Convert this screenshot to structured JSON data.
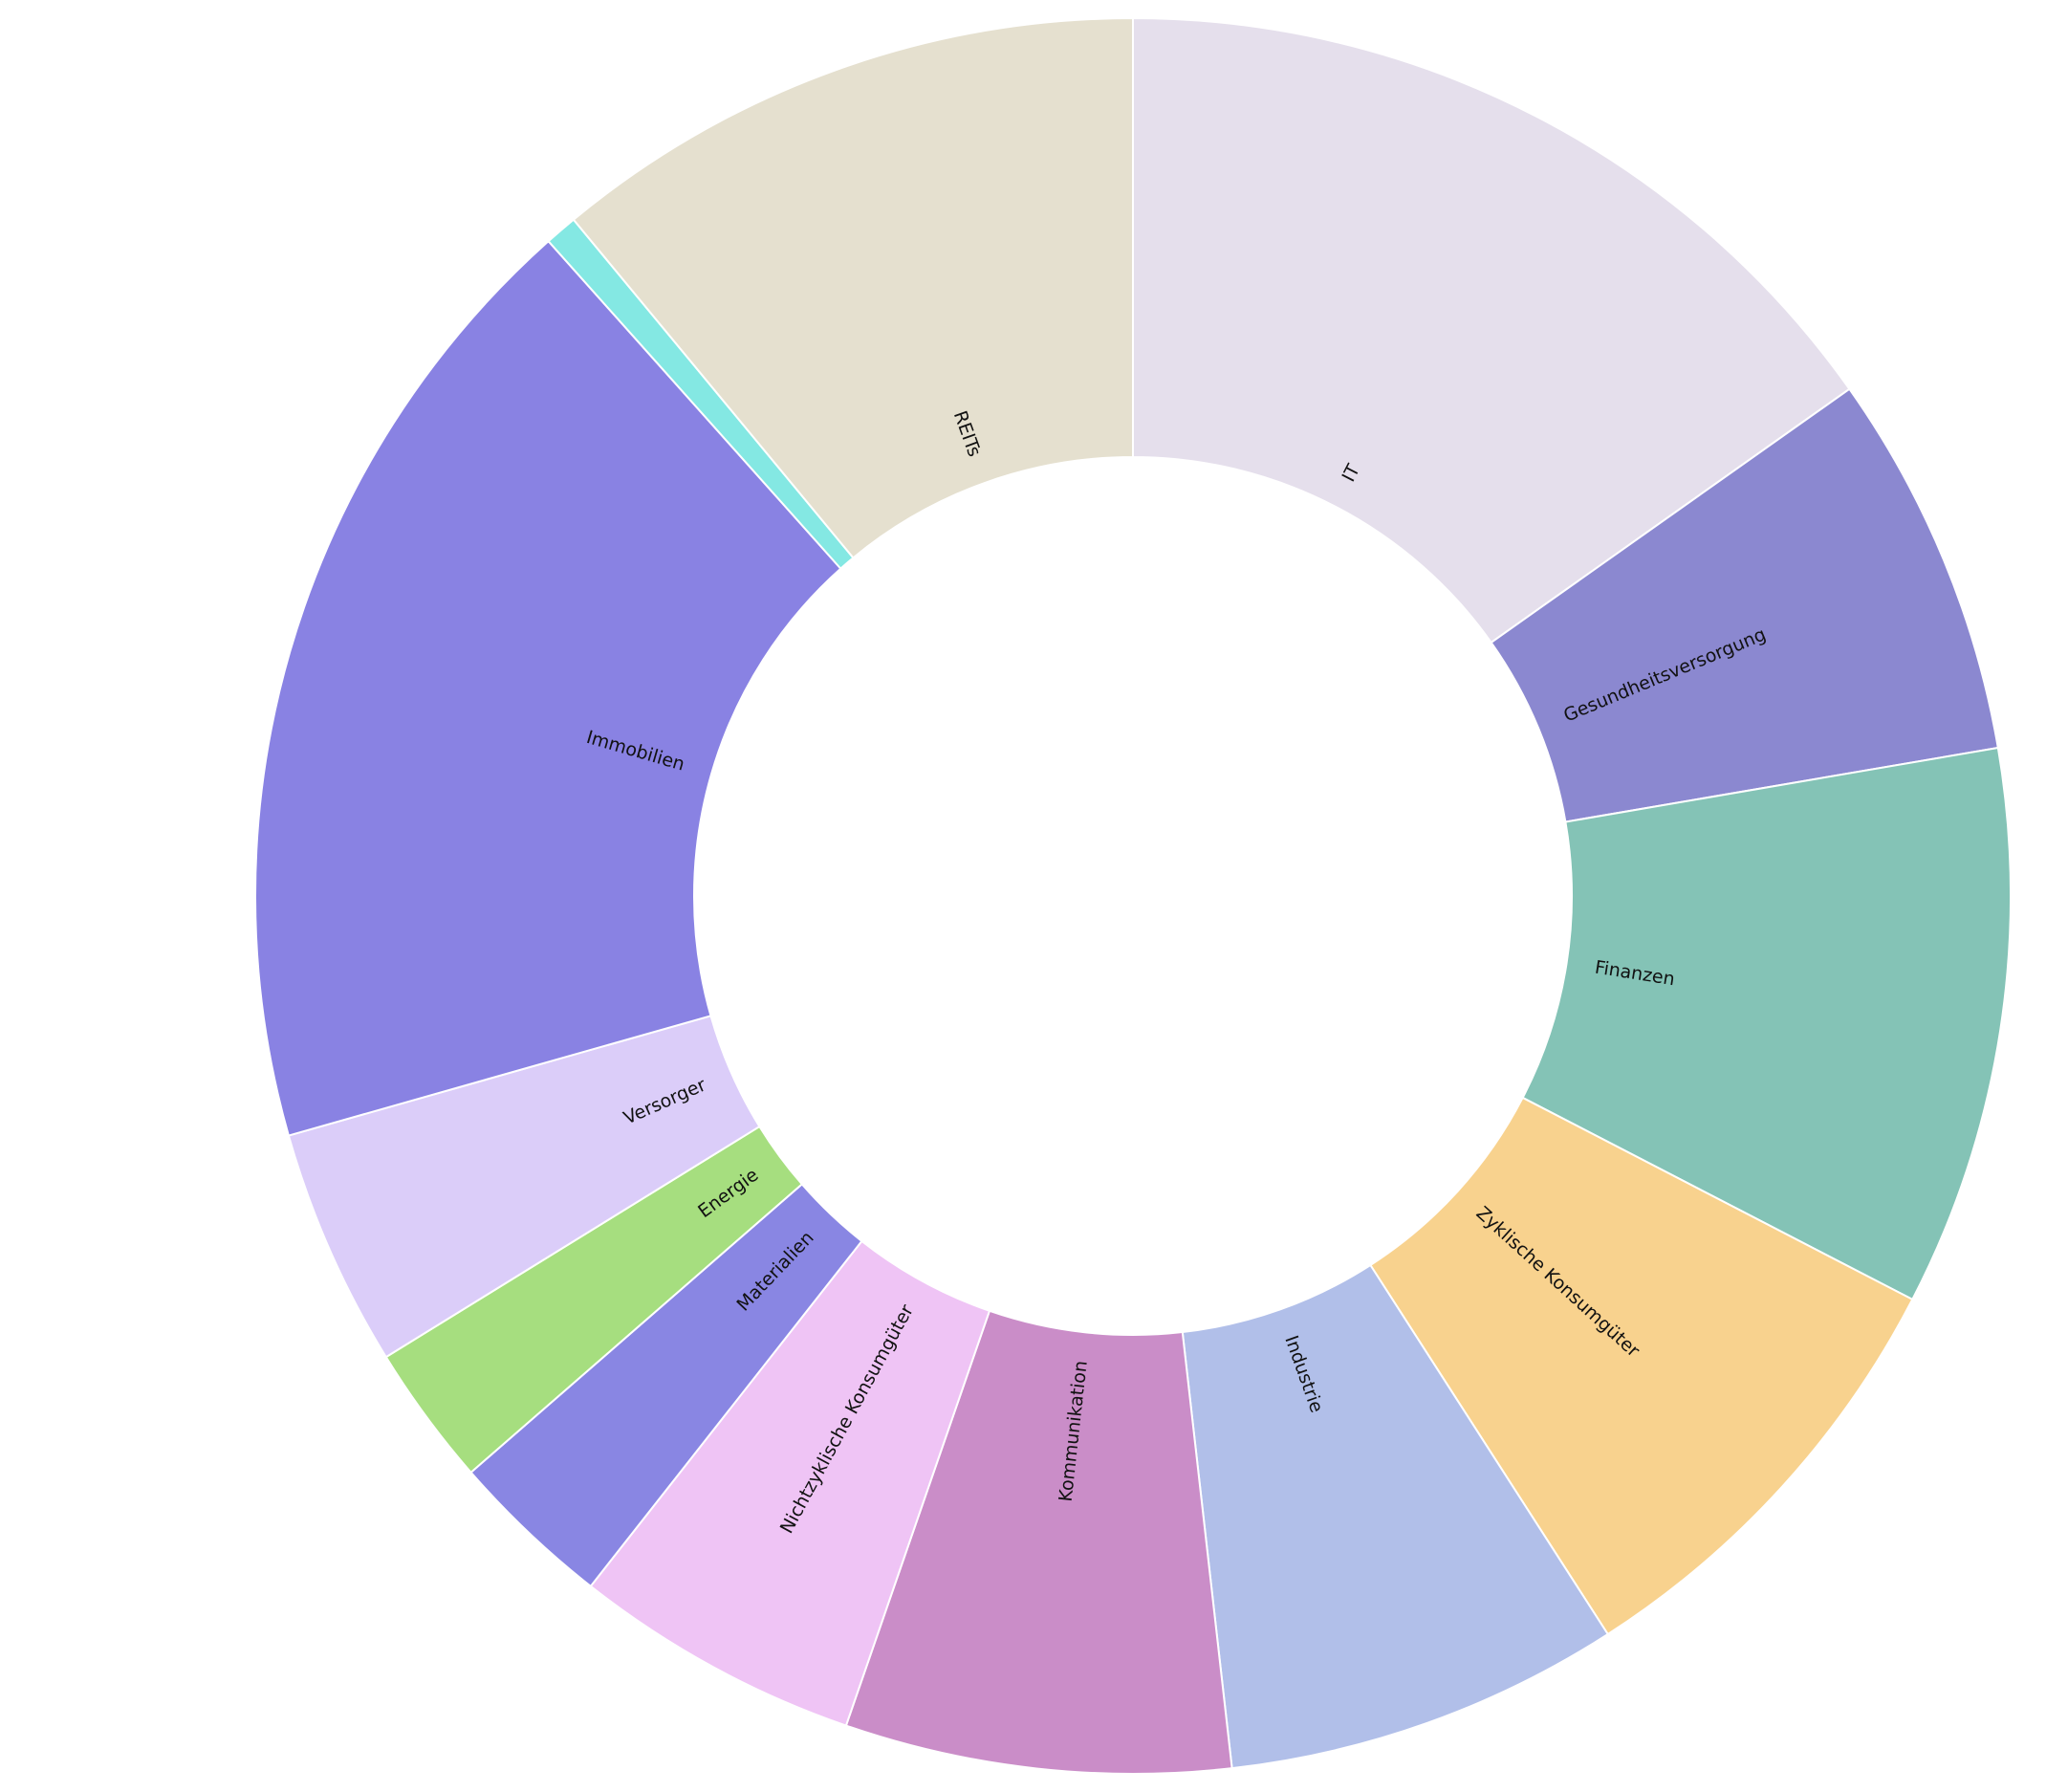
{
  "chart_data": {
    "type": "pie",
    "variant": "donut",
    "title": "",
    "slices": [
      {
        "label": "IT",
        "value": 15.2,
        "color": "#e5dfec"
      },
      {
        "label": "Gesundheitsversorgung",
        "value": 7.1,
        "color": "#8b88d0"
      },
      {
        "label": "Finanzen",
        "value": 10.3,
        "color": "#84c3b6"
      },
      {
        "label": "Zyklische Konsumgüter",
        "value": 8.3,
        "color": "#f8d28e"
      },
      {
        "label": "Industrie",
        "value": 7.3,
        "color": "#b1bfe9"
      },
      {
        "label": "Kommunikation",
        "value": 7.1,
        "color": "#ca8dc8"
      },
      {
        "label": "Nichtzyklische Konsumgüter",
        "value": 5.3,
        "color": "#efc4f5"
      },
      {
        "label": "Materialien",
        "value": 3.0,
        "color": "#8986e3"
      },
      {
        "label": "Energie",
        "value": 2.6,
        "color": "#a6de7f"
      },
      {
        "label": "Versorger",
        "value": 4.4,
        "color": "#dbcdf9"
      },
      {
        "label": "Immobilien",
        "value": 17.8,
        "color": "#8982e3"
      },
      {
        "label": "",
        "value": 0.6,
        "color": "#84e8e3"
      },
      {
        "label": "REITs",
        "value": 11.0,
        "color": "#e5e0cf"
      }
    ],
    "start_angle_deg": 0,
    "direction": "clockwise",
    "legend": "none"
  }
}
